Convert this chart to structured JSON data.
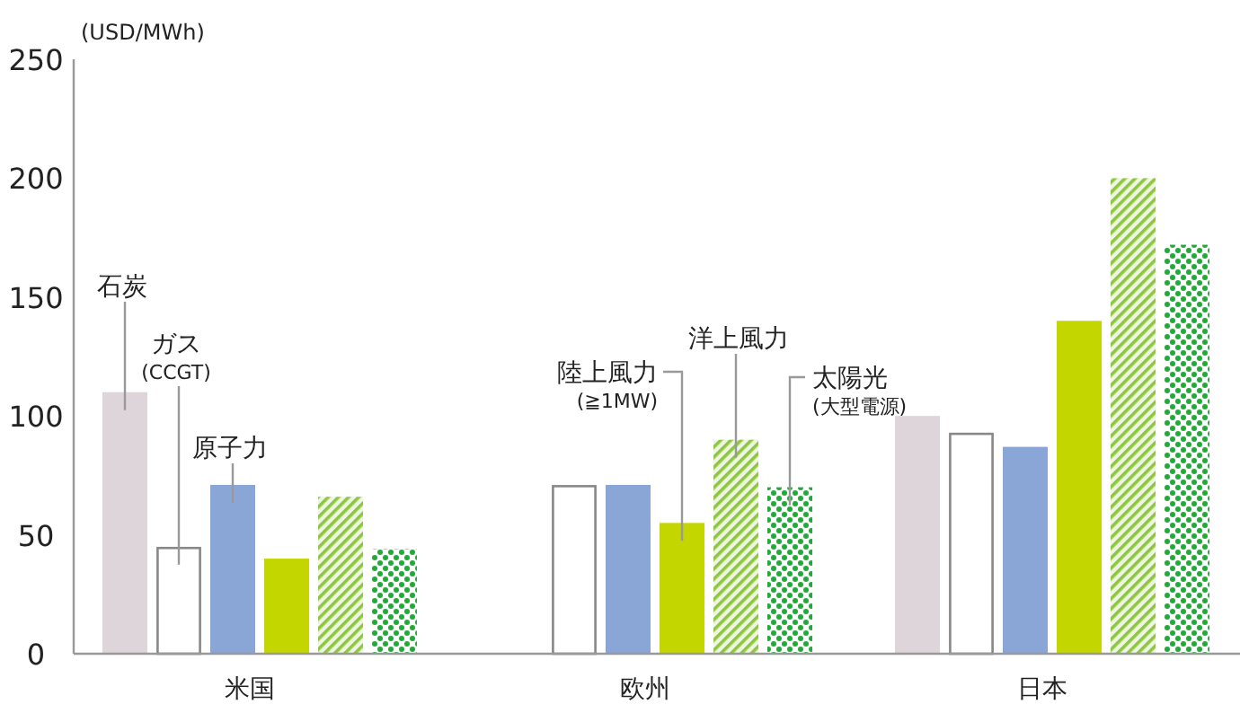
{
  "chart_data": {
    "type": "bar",
    "ylabel": "(USD/MWh)",
    "categories": [
      "米国",
      "欧州",
      "日本"
    ],
    "ylim": [
      0,
      250
    ],
    "yticks": [
      0,
      50,
      100,
      150,
      200,
      250
    ],
    "series": [
      {
        "name": "石炭",
        "color": "#ddd5d9",
        "values": [
          110,
          null,
          100
        ]
      },
      {
        "name": "ガス(CCGT)",
        "color": "#ffffff",
        "values": [
          45,
          71,
          93
        ]
      },
      {
        "name": "原子力",
        "color": "#8aa6d6",
        "values": [
          71,
          71,
          87
        ]
      },
      {
        "name": "陸上風力(≧1MW)",
        "color": "#c4d600",
        "values": [
          40,
          55,
          140
        ]
      },
      {
        "name": "洋上風力",
        "color": "#8dc63f",
        "values": [
          66,
          90,
          200
        ]
      },
      {
        "name": "太陽光(大型電源)",
        "color": "#22a93a",
        "values": [
          44,
          70,
          172
        ]
      }
    ]
  }
}
